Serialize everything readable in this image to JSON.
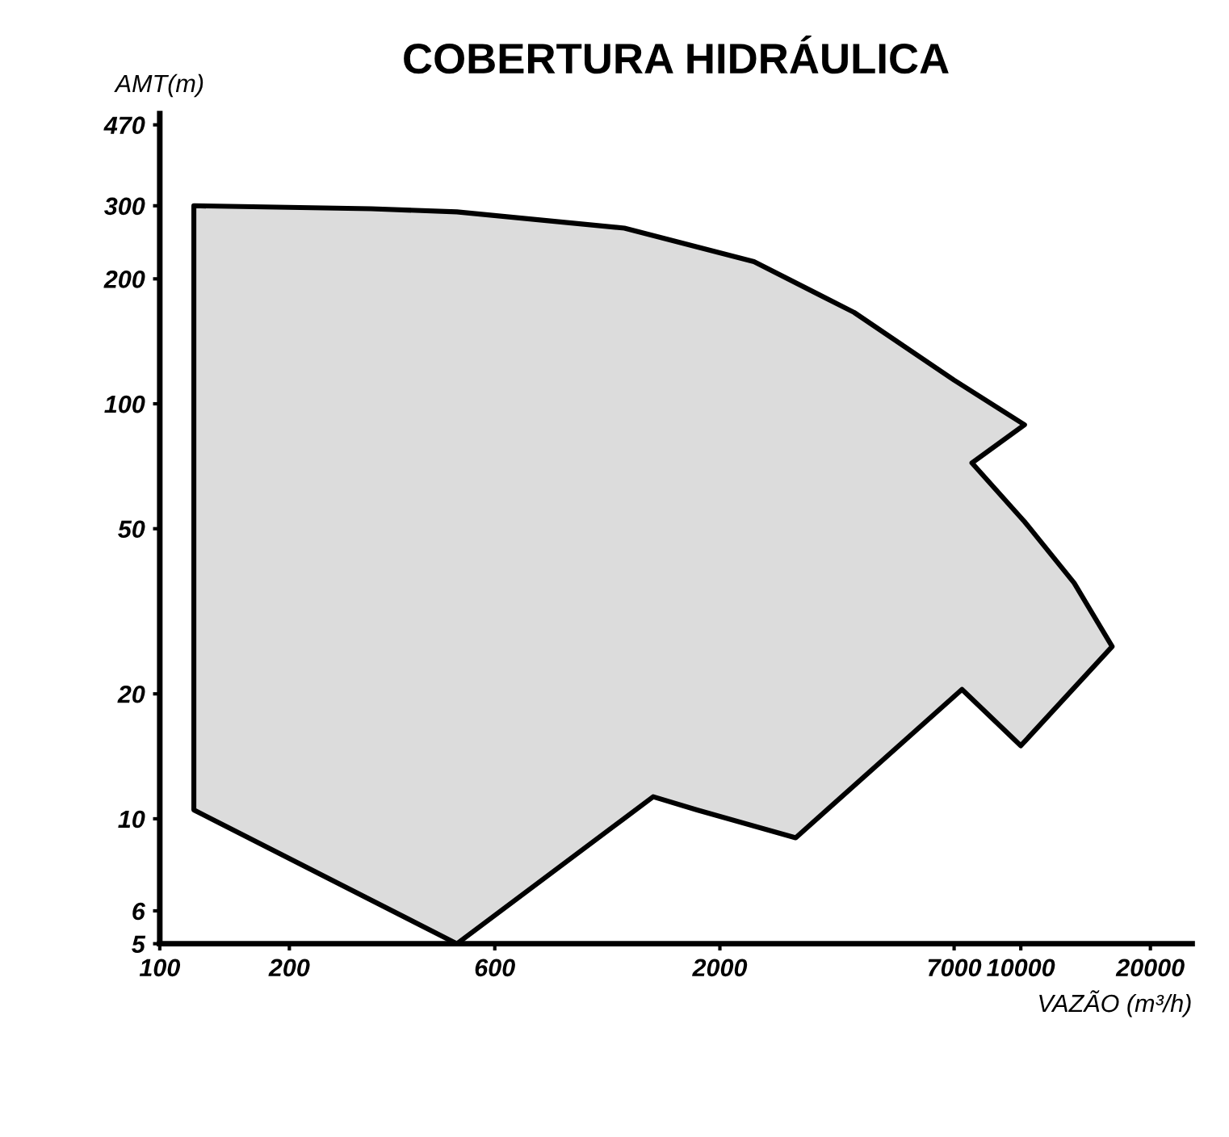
{
  "chart_data": {
    "type": "area",
    "title": "COBERTURA HIDRÁULICA",
    "xlabel": "VAZÃO (m³/h)",
    "ylabel": "AMT(m)",
    "log": "xy",
    "series": [
      {
        "color": "#dcdcdc",
        "x": [
          120,
          310,
          490,
          1200,
          2400,
          4100,
          7000,
          10200,
          7700,
          10200,
          13300,
          16300,
          10000,
          7300,
          3000,
          1770,
          1400,
          490,
          120
        ],
        "values": [
          300,
          295,
          290,
          265,
          220,
          166,
          114,
          89,
          72,
          52,
          37,
          26,
          15,
          20.5,
          9,
          10.5,
          11.3,
          5,
          10.5
        ]
      }
    ],
    "xlim": [
      100,
      25000
    ],
    "xticks": [
      100,
      200,
      600,
      2000,
      7000,
      10000,
      20000
    ],
    "ylim": [
      5,
      500
    ],
    "yticks": [
      5,
      6,
      10,
      20,
      50,
      100,
      200,
      300,
      470
    ]
  }
}
